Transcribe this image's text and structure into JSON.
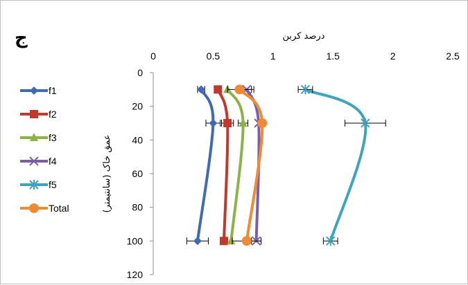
{
  "panel_letter": "ج",
  "chart_data": {
    "type": "line",
    "orientation": "depth-profile",
    "title": "",
    "xlabel": "درصد کربن",
    "ylabel": "عمق خاک (سانتیمتر)",
    "xlim": [
      0,
      2.5
    ],
    "ylim": [
      0,
      120
    ],
    "y_inverted": true,
    "x_axis_position": "top",
    "grid": false,
    "legend_position": "left",
    "x_ticks": [
      "0",
      "0.5",
      "1",
      "1.5",
      "2",
      "2.5"
    ],
    "y_ticks": [
      "0",
      "20",
      "40",
      "60",
      "80",
      "100",
      "120"
    ],
    "depth": [
      10,
      30,
      100
    ],
    "series": [
      {
        "name": "f1",
        "color": "#3E6BB3",
        "marker": "diamond",
        "values": [
          0.4,
          0.5,
          0.37
        ],
        "error": [
          0.03,
          0.06,
          0.09
        ]
      },
      {
        "name": "f2",
        "color": "#C0392B",
        "marker": "square",
        "values": [
          0.54,
          0.62,
          0.59
        ],
        "error": [
          0.0,
          0.05,
          0.03
        ]
      },
      {
        "name": "f3",
        "color": "#8DB347",
        "marker": "triangle",
        "values": [
          0.62,
          0.75,
          0.65
        ],
        "error": [
          0.0,
          0.04,
          0.0
        ]
      },
      {
        "name": "f4",
        "color": "#7A5FA8",
        "marker": "x",
        "values": [
          0.78,
          0.88,
          0.86
        ],
        "error": [
          0.06,
          0.0,
          0.04
        ]
      },
      {
        "name": "f5",
        "color": "#3DA3BF",
        "marker": "star",
        "values": [
          1.27,
          1.77,
          1.48
        ],
        "error": [
          0.06,
          0.17,
          0.06
        ]
      },
      {
        "name": "Total",
        "color": "#F08A33",
        "marker": "circle",
        "values": [
          0.72,
          0.91,
          0.78
        ],
        "error": [
          0.1,
          0.0,
          0.12
        ]
      }
    ]
  }
}
